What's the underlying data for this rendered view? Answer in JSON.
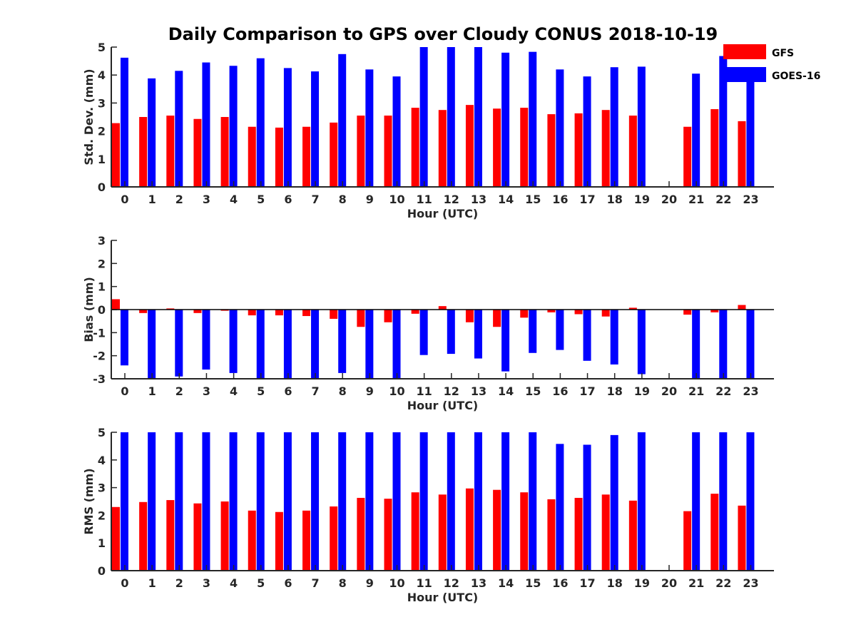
{
  "title": "Daily Comparison to GPS over Cloudy CONUS 2018-10-19",
  "legend": {
    "placement": "top-right",
    "entries": [
      "GFS",
      "GOES-16"
    ]
  },
  "colors": {
    "GFS": "#ff0000",
    "GOES-16": "#0000ff"
  },
  "chart_data": [
    {
      "type": "bar",
      "ylabel": "Std. Dev. (mm)",
      "xlabel": "Hour (UTC)",
      "ylim": [
        0,
        5
      ],
      "yticks": [
        0,
        1,
        2,
        3,
        4,
        5
      ],
      "categories": [
        "0",
        "1",
        "2",
        "3",
        "4",
        "5",
        "6",
        "7",
        "8",
        "9",
        "10",
        "11",
        "12",
        "13",
        "14",
        "15",
        "16",
        "17",
        "18",
        "19",
        "20",
        "21",
        "22",
        "23"
      ],
      "series": [
        {
          "name": "GFS",
          "values": [
            2.28,
            2.5,
            2.55,
            2.43,
            2.5,
            2.15,
            2.12,
            2.15,
            2.3,
            2.55,
            2.55,
            2.83,
            2.75,
            2.93,
            2.8,
            2.83,
            2.6,
            2.63,
            2.75,
            2.55,
            null,
            2.15,
            2.78,
            2.35
          ]
        },
        {
          "name": "GOES-16",
          "values": [
            4.62,
            3.88,
            4.15,
            4.45,
            4.33,
            4.6,
            4.25,
            4.13,
            4.75,
            4.2,
            3.95,
            5,
            5,
            5,
            4.8,
            4.83,
            4.2,
            3.95,
            4.28,
            4.3,
            null,
            4.05,
            4.68,
            4.0
          ]
        }
      ]
    },
    {
      "type": "bar",
      "ylabel": "Bias (mm)",
      "xlabel": "Hour (UTC)",
      "ylim": [
        -3,
        3
      ],
      "yticks": [
        -3,
        -2,
        -1,
        0,
        1,
        2,
        3
      ],
      "zero_line": true,
      "categories": [
        "0",
        "1",
        "2",
        "3",
        "4",
        "5",
        "6",
        "7",
        "8",
        "9",
        "10",
        "11",
        "12",
        "13",
        "14",
        "15",
        "16",
        "17",
        "18",
        "19",
        "20",
        "21",
        "22",
        "23"
      ],
      "series": [
        {
          "name": "GFS",
          "values": [
            0.45,
            -0.15,
            0.05,
            -0.15,
            -0.05,
            -0.25,
            -0.25,
            -0.28,
            -0.4,
            -0.75,
            -0.55,
            -0.18,
            0.15,
            -0.55,
            -0.75,
            -0.35,
            -0.12,
            -0.2,
            -0.3,
            0.08,
            null,
            -0.22,
            -0.12,
            0.2
          ]
        },
        {
          "name": "GOES-16",
          "values": [
            -2.42,
            -3,
            -2.9,
            -2.6,
            -2.75,
            -3,
            -3,
            -3,
            -2.75,
            -3,
            -3,
            -1.97,
            -1.92,
            -2.12,
            -2.68,
            -1.88,
            -1.75,
            -2.22,
            -2.38,
            -2.8,
            null,
            -3,
            -3,
            -3
          ]
        }
      ]
    },
    {
      "type": "bar",
      "ylabel": "RMS (mm)",
      "xlabel": "Hour (UTC)",
      "ylim": [
        0,
        5
      ],
      "yticks": [
        0,
        1,
        2,
        3,
        4,
        5
      ],
      "categories": [
        "0",
        "1",
        "2",
        "3",
        "4",
        "5",
        "6",
        "7",
        "8",
        "9",
        "10",
        "11",
        "12",
        "13",
        "14",
        "15",
        "16",
        "17",
        "18",
        "19",
        "20",
        "21",
        "22",
        "23"
      ],
      "series": [
        {
          "name": "GFS",
          "values": [
            2.3,
            2.48,
            2.55,
            2.43,
            2.5,
            2.17,
            2.12,
            2.17,
            2.32,
            2.63,
            2.6,
            2.83,
            2.75,
            2.97,
            2.92,
            2.83,
            2.58,
            2.63,
            2.75,
            2.53,
            null,
            2.15,
            2.78,
            2.35
          ]
        },
        {
          "name": "GOES-16",
          "values": [
            5,
            5,
            5,
            5,
            5,
            5,
            5,
            5,
            5,
            5,
            5,
            5,
            5,
            5,
            5,
            5,
            4.58,
            4.55,
            4.9,
            5,
            null,
            5,
            5,
            5
          ]
        }
      ]
    }
  ]
}
